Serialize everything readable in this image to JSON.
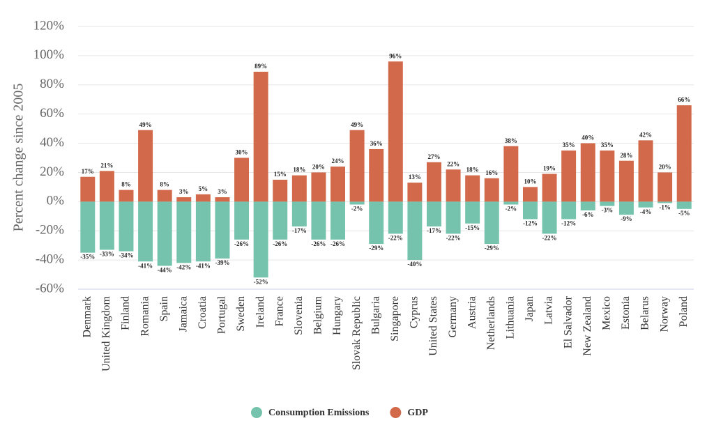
{
  "chart_data": {
    "type": "bar",
    "y_label": "Percent change since 2005",
    "categories": [
      "Denmark",
      "United Kingdom",
      "Finland",
      "Romania",
      "Spain",
      "Jamaica",
      "Croatia",
      "Portugal",
      "Sweden",
      "Ireland",
      "France",
      "Slovenia",
      "Belgium",
      "Hungary",
      "Slovak Republic",
      "Bulgaria",
      "Singapore",
      "Cyprus",
      "United States",
      "Germany",
      "Austria",
      "Netherlands",
      "Lithuania",
      "Japan",
      "Latvia",
      "El Salvador",
      "New Zealand",
      "Mexico",
      "Estonia",
      "Belarus",
      "Norway",
      "Poland"
    ],
    "series": [
      {
        "name": "Consumption Emissions",
        "color": "#76c3ad",
        "values": [
          -35,
          -33,
          -34,
          -41,
          -44,
          -42,
          -41,
          -39,
          -26,
          -52,
          -26,
          -17,
          -26,
          -26,
          -2,
          -29,
          -22,
          -40,
          -17,
          -22,
          -15,
          -29,
          -2,
          -12,
          -22,
          -12,
          -6,
          -3,
          -9,
          -4,
          -1,
          -5
        ],
        "value_labels": [
          "-35%",
          "-33%",
          "-34%",
          "-41%",
          "-44%",
          "-42%",
          "-41%",
          "-39%",
          "-26%",
          "-52%",
          "-26%",
          "-17%",
          "-26%",
          "-26%",
          "-2%",
          "-29%",
          "-22%",
          "-40%",
          "-17%",
          "-22%",
          "-15%",
          "-29%",
          "-2%",
          "-12%",
          "-22%",
          "-12%",
          "-6%",
          "-3%",
          "-9%",
          "-4%",
          "-1%",
          "-5%"
        ]
      },
      {
        "name": "GDP",
        "color": "#d2694a",
        "values": [
          17,
          21,
          8,
          49,
          8,
          3,
          5,
          3,
          30,
          89,
          15,
          18,
          20,
          24,
          49,
          36,
          96,
          13,
          27,
          22,
          18,
          16,
          38,
          10,
          19,
          35,
          40,
          35,
          28,
          42,
          20,
          66
        ],
        "value_labels": [
          "17%",
          "21%",
          "8%",
          "49%",
          "8%",
          "3%",
          "5%",
          "3%",
          "30%",
          "89%",
          "15%",
          "18%",
          "20%",
          "24%",
          "49%",
          "36%",
          "96%",
          "13%",
          "27%",
          "22%",
          "18%",
          "16%",
          "38%",
          "10%",
          "19%",
          "35%",
          "40%",
          "35%",
          "28%",
          "42%",
          "20%",
          "66%"
        ]
      }
    ],
    "ylim": [
      -60,
      120
    ],
    "yticks": [
      {
        "value": -60,
        "label": "-60%"
      },
      {
        "value": -40,
        "label": "-40%"
      },
      {
        "value": -20,
        "label": "-20%"
      },
      {
        "value": 0,
        "label": "0%"
      },
      {
        "value": 20,
        "label": "20%"
      },
      {
        "value": 40,
        "label": "40%"
      },
      {
        "value": 60,
        "label": "60%"
      },
      {
        "value": 80,
        "label": "80%"
      },
      {
        "value": 100,
        "label": "100%"
      },
      {
        "value": 120,
        "label": "120%"
      }
    ],
    "grid": true,
    "legend": "bottom"
  }
}
